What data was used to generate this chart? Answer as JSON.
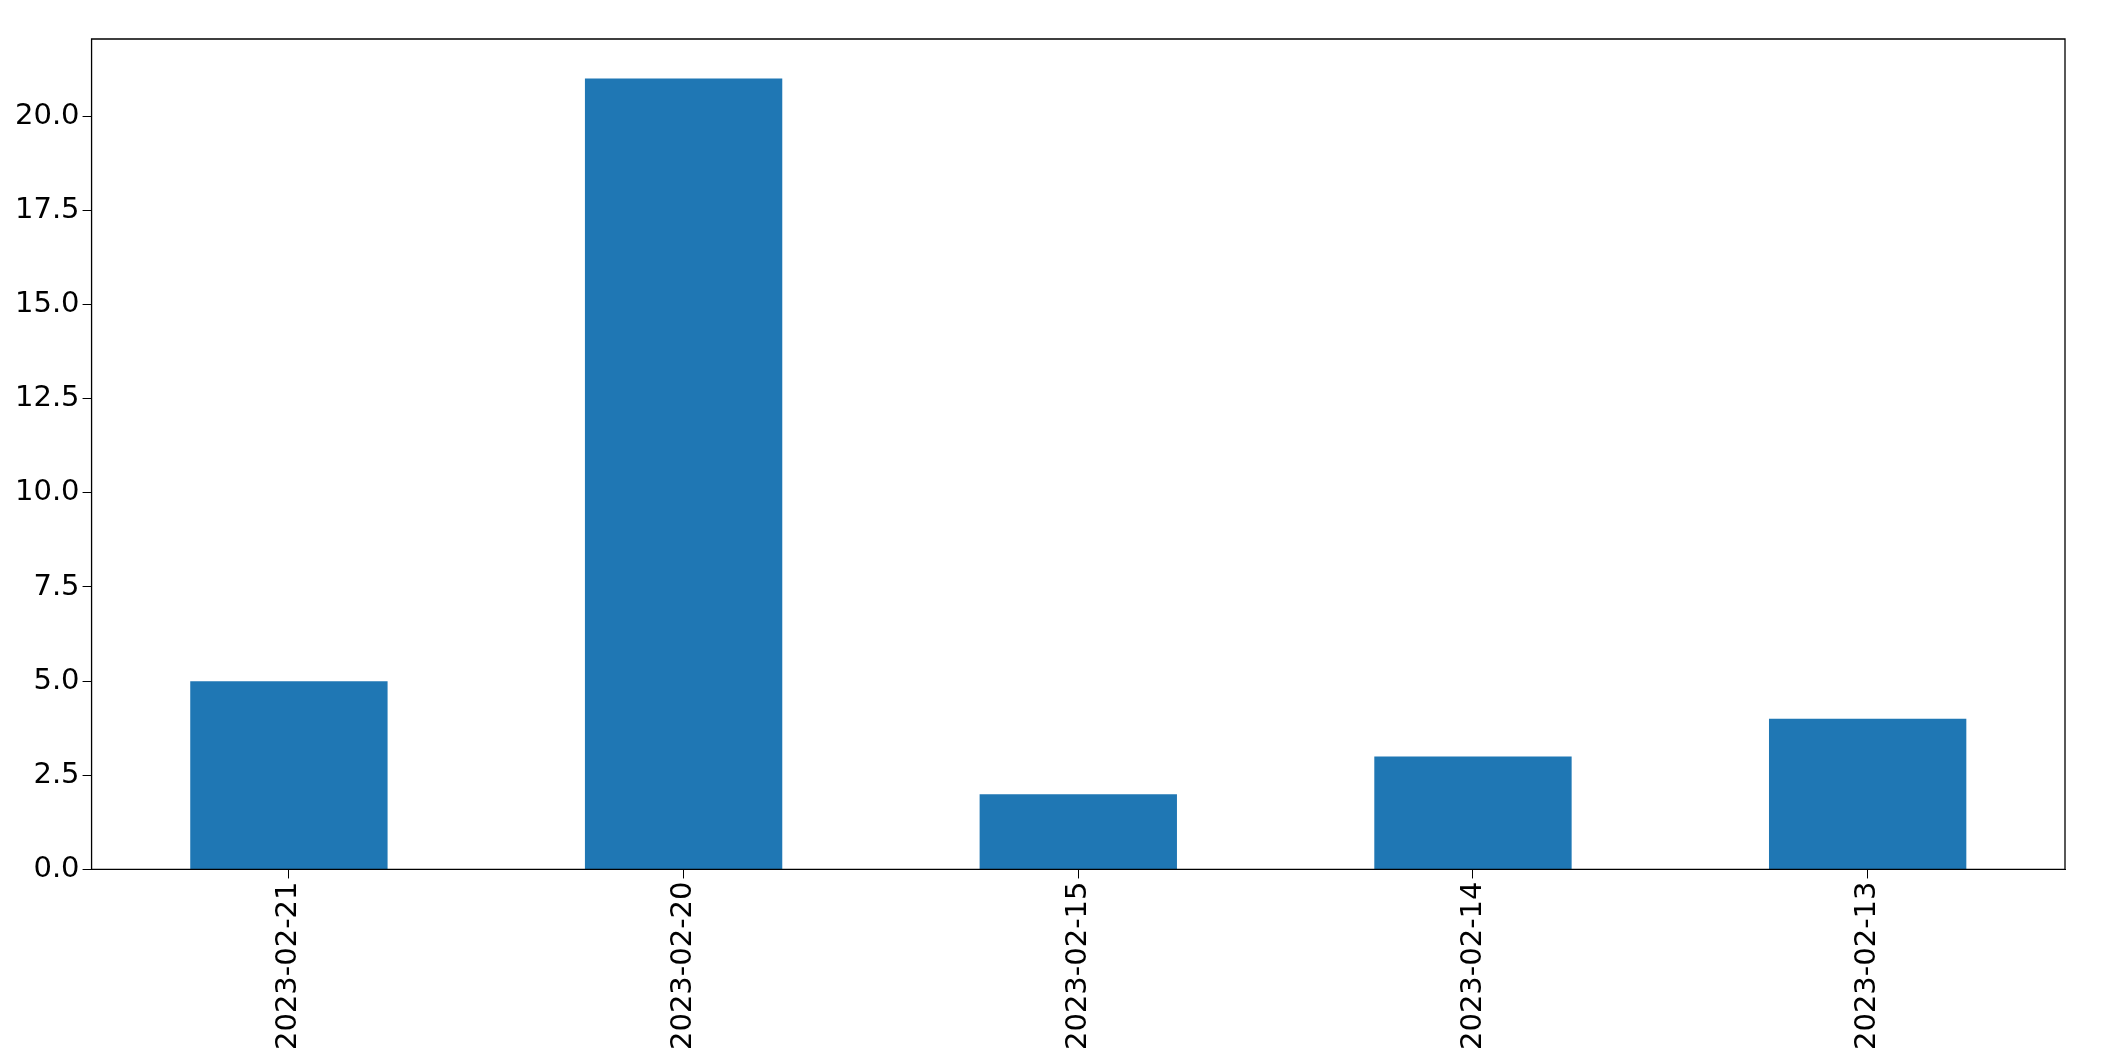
{
  "chart_data": {
    "type": "bar",
    "categories": [
      "2023-02-21",
      "2023-02-20",
      "2023-02-15",
      "2023-02-14",
      "2023-02-13"
    ],
    "values": [
      5,
      21,
      2,
      3,
      4
    ],
    "color": "#1f77b4",
    "ylim": [
      0,
      22.05
    ],
    "yticks": [
      {
        "value": 0,
        "label": "0.0"
      },
      {
        "value": 2.5,
        "label": "2.5"
      },
      {
        "value": 5,
        "label": "5.0"
      },
      {
        "value": 7.5,
        "label": "7.5"
      },
      {
        "value": 10,
        "label": "10.0"
      },
      {
        "value": 12.5,
        "label": "12.5"
      },
      {
        "value": 15,
        "label": "15.0"
      },
      {
        "value": 17.5,
        "label": "17.5"
      },
      {
        "value": 20,
        "label": "20.0"
      }
    ],
    "grid": false,
    "legend": false
  }
}
